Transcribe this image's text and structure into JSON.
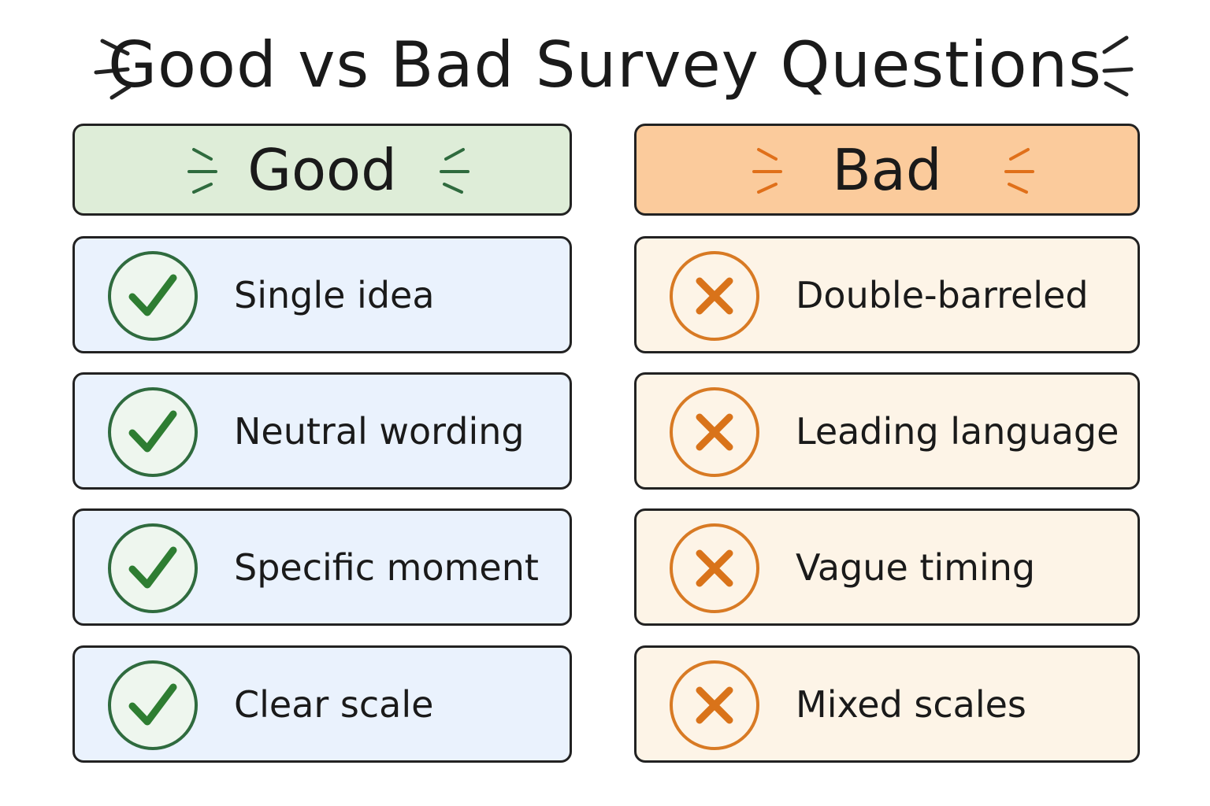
{
  "title": "Good vs Bad Survey Questions",
  "columns": [
    {
      "heading": "Good",
      "items": [
        "Single idea",
        "Neutral wording",
        "Specific moment",
        "Clear scale"
      ]
    },
    {
      "heading": "Bad",
      "items": [
        "Double-barreled",
        "Leading language",
        "Vague timing",
        "Mixed scales"
      ]
    }
  ]
}
